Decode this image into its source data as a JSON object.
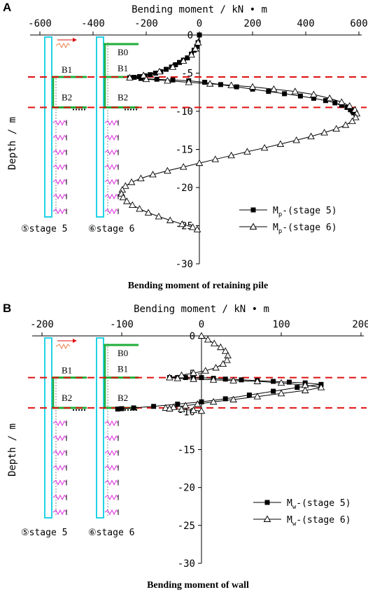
{
  "chart_data": [
    {
      "panel": "A",
      "type": "line",
      "title": "Bending moment of retaining pile",
      "xlabel": "Bending moment / kN • m",
      "ylabel": "Depth / m",
      "xlim": [
        -600,
        600
      ],
      "ylim": [
        -30,
        0
      ],
      "xticks": [
        "-600",
        "-400",
        "-200",
        "0",
        "200",
        "400",
        "600"
      ],
      "yticks": [
        "0",
        "-5",
        "-10",
        "-15",
        "-20",
        "-25",
        "-30"
      ],
      "dashed_levels": [
        -5.5,
        -9.5
      ],
      "legend_placement": "lower-right",
      "series": [
        {
          "name": "Mp-(stage 5)",
          "legend_main": "M",
          "legend_sub": "p",
          "legend_tail": "-(stage 5)",
          "marker": "square",
          "x": [
            0,
            -5,
            -10,
            -20,
            -30,
            -45,
            -60,
            -75,
            -90,
            -105,
            -125,
            -145,
            -165,
            -185,
            -205,
            -225,
            -245,
            -262,
            -220,
            -160,
            -100,
            -40,
            20,
            80,
            140,
            200,
            260,
            320,
            380,
            430,
            475,
            510,
            535,
            555,
            568,
            576,
            580
          ],
          "y": [
            0,
            -1,
            -1.5,
            -2,
            -2.5,
            -3,
            -3.3,
            -3.6,
            -3.9,
            -4.2,
            -4.5,
            -4.8,
            -5.0,
            -5.2,
            -5.35,
            -5.45,
            -5.55,
            -5.6,
            -5.7,
            -5.8,
            -5.9,
            -6.0,
            -6.2,
            -6.5,
            -6.8,
            -7.1,
            -7.4,
            -7.7,
            -8.0,
            -8.3,
            -8.6,
            -8.9,
            -9.2,
            -9.5,
            -9.8,
            -10.0,
            -10.2
          ]
        },
        {
          "name": "Mp-(stage 6)",
          "legend_main": "M",
          "legend_sub": "p",
          "legend_tail": "-(stage 6)",
          "marker": "triangle",
          "x": [
            -5,
            -15,
            -30,
            -60,
            -100,
            -150,
            -210,
            -262,
            -200,
            -120,
            -40,
            40,
            120,
            200,
            280,
            360,
            430,
            490,
            535,
            565,
            585,
            592,
            588,
            575,
            550,
            515,
            470,
            420,
            365,
            305,
            245,
            180,
            120,
            60,
            0,
            -60,
            -120,
            -175,
            -220,
            -255,
            -278,
            -290,
            -293,
            -287,
            -273,
            -252,
            -225,
            -192,
            -153,
            -110,
            -65,
            -25,
            -8
          ],
          "y": [
            -1,
            -1.8,
            -2.6,
            -3.4,
            -4.2,
            -4.8,
            -5.3,
            -5.6,
            -5.8,
            -6.0,
            -6.2,
            -6.4,
            -6.6,
            -6.8,
            -7.1,
            -7.4,
            -7.8,
            -8.3,
            -8.8,
            -9.3,
            -9.8,
            -10.3,
            -10.8,
            -11.3,
            -11.8,
            -12.3,
            -12.8,
            -13.3,
            -13.8,
            -14.3,
            -14.8,
            -15.3,
            -15.8,
            -16.3,
            -16.8,
            -17.3,
            -17.8,
            -18.3,
            -18.8,
            -19.3,
            -19.8,
            -20.3,
            -20.8,
            -21.3,
            -21.8,
            -22.3,
            -22.8,
            -23.3,
            -23.8,
            -24.3,
            -24.8,
            -25.2,
            -25.5
          ]
        }
      ],
      "schematic": {
        "labels": [
          "B1",
          "B2"
        ],
        "labels_stage6": [
          "B0",
          "B1",
          "B2"
        ],
        "stage_left": "⑤stage 5",
        "stage_right": "⑥stage 6"
      }
    },
    {
      "panel": "B",
      "type": "line",
      "title": "Bending moment of wall",
      "xlabel": "Bending moment / kN • m",
      "ylabel": "Depth / m",
      "xlim": [
        -200,
        200
      ],
      "ylim": [
        -30,
        0
      ],
      "xticks": [
        "-200",
        "-100",
        "0",
        "100",
        "200"
      ],
      "yticks": [
        "0",
        "-5",
        "-10",
        "-15",
        "-20",
        "-25",
        "-30"
      ],
      "dashed_levels": [
        -5.5,
        -9.5
      ],
      "legend_placement": "lower-right",
      "series": [
        {
          "name": "Mw-(stage 5)",
          "legend_main": "M",
          "legend_sub": "w",
          "legend_tail": "-(stage 5)",
          "marker": "square",
          "x": [
            -40,
            -30,
            -20,
            -10,
            0,
            15,
            30,
            50,
            70,
            90,
            110,
            130,
            150,
            120,
            90,
            60,
            30,
            0,
            -30,
            -60,
            -85,
            -100,
            -105
          ],
          "y": [
            -5.5,
            -5.5,
            -5.5,
            -5.5,
            -5.5,
            -5.6,
            -5.7,
            -5.8,
            -5.9,
            -6.0,
            -6.1,
            -6.2,
            -6.4,
            -6.8,
            -7.3,
            -7.8,
            -8.3,
            -8.7,
            -9.0,
            -9.3,
            -9.5,
            -9.6,
            -9.65
          ]
        },
        {
          "name": "Mw-(stage 6)",
          "legend_main": "M",
          "legend_sub": "w",
          "legend_tail": "-(stage 6)",
          "marker": "triangle",
          "x": [
            0,
            8,
            16,
            24,
            30,
            33,
            32,
            27,
            18,
            5,
            -10,
            -25,
            -40,
            -30,
            -10,
            15,
            40,
            70,
            100,
            130,
            150,
            130,
            100,
            70,
            40,
            15,
            -5,
            -20,
            -35,
            -45,
            -40,
            -25,
            -10,
            0
          ],
          "y": [
            0,
            -0.5,
            -1.0,
            -1.5,
            -2.0,
            -2.6,
            -3.2,
            -3.7,
            -4.2,
            -4.6,
            -4.9,
            -5.2,
            -5.5,
            -5.6,
            -5.7,
            -5.8,
            -5.9,
            -6.0,
            -6.2,
            -6.5,
            -6.8,
            -7.2,
            -7.6,
            -8.0,
            -8.4,
            -8.7,
            -9.0,
            -9.2,
            -9.4,
            -9.5,
            -9.6,
            -9.7,
            -9.8,
            -9.9
          ]
        }
      ],
      "schematic": {
        "labels": [
          "B1",
          "B2"
        ],
        "labels_stage6": [
          "B0",
          "B1",
          "B2"
        ],
        "stage_left": "⑤stage 5",
        "stage_right": "⑥stage 6"
      }
    }
  ]
}
